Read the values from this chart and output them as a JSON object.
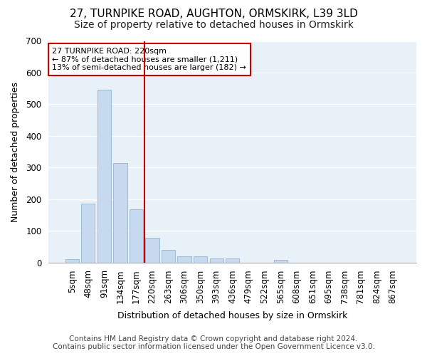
{
  "title": "27, TURNPIKE ROAD, AUGHTON, ORMSKIRK, L39 3LD",
  "subtitle": "Size of property relative to detached houses in Ormskirk",
  "xlabel": "Distribution of detached houses by size in Ormskirk",
  "ylabel": "Number of detached properties",
  "bar_color": "#c6d9ee",
  "bar_edge_color": "#9abcd4",
  "plot_bg_color": "#e8f0f8",
  "fig_bg_color": "#ffffff",
  "grid_color": "#ffffff",
  "annotation_text": "27 TURNPIKE ROAD: 220sqm\n← 87% of detached houses are smaller (1,211)\n13% of semi-detached houses are larger (182) →",
  "annotation_box_color": "#ffffff",
  "red_line_color": "#cc0000",
  "categories": [
    "5sqm",
    "48sqm",
    "91sqm",
    "134sqm",
    "177sqm",
    "220sqm",
    "263sqm",
    "306sqm",
    "350sqm",
    "393sqm",
    "436sqm",
    "479sqm",
    "522sqm",
    "565sqm",
    "608sqm",
    "651sqm",
    "695sqm",
    "738sqm",
    "781sqm",
    "824sqm",
    "867sqm"
  ],
  "values": [
    10,
    185,
    545,
    315,
    168,
    77,
    40,
    20,
    20,
    12,
    12,
    0,
    0,
    8,
    0,
    0,
    0,
    0,
    0,
    0,
    0
  ],
  "red_line_idx": 4.5,
  "ylim": [
    0,
    700
  ],
  "yticks": [
    0,
    100,
    200,
    300,
    400,
    500,
    600,
    700
  ],
  "footer_text": "Contains HM Land Registry data © Crown copyright and database right 2024.\nContains public sector information licensed under the Open Government Licence v3.0.",
  "title_fontsize": 11,
  "subtitle_fontsize": 10,
  "footer_fontsize": 7.5,
  "axis_label_fontsize": 9,
  "tick_fontsize": 8.5
}
